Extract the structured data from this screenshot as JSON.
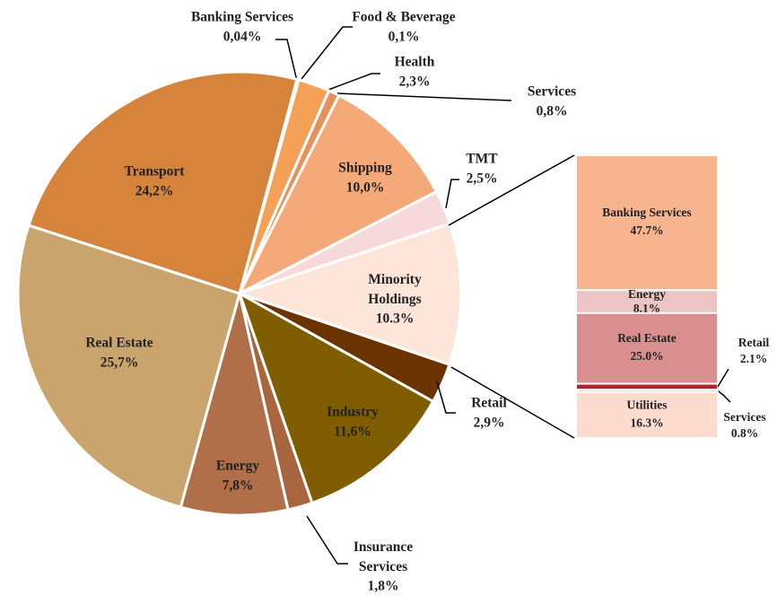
{
  "chart_data": [
    {
      "type": "pie",
      "categories": [
        "Banking Services",
        "Food & Beverage",
        "Health",
        "Services",
        "Shipping",
        "TMT",
        "Minority Holdings",
        "Retail",
        "Industry",
        "Insurance Services",
        "Energy",
        "Real Estate",
        "Transport"
      ],
      "values": [
        0.04,
        0.1,
        2.3,
        0.8,
        10.0,
        2.5,
        10.3,
        2.9,
        11.6,
        1.8,
        7.8,
        25.7,
        24.2
      ],
      "value_labels": [
        "0,04%",
        "0,1%",
        "2,3%",
        "0,8%",
        "10,0%",
        "2,5%",
        "10.3%",
        "2,9%",
        "11,6%",
        "1,8%",
        "7,8%",
        "25,7%",
        "24,2%"
      ],
      "colors": [
        "#fbe3c8",
        "#f6c089",
        "#f5a057",
        "#e8905a",
        "#f5a878",
        "#f7d9dc",
        "#fde5d9",
        "#6b3300",
        "#7f5d00",
        "#a8653e",
        "#b06f48",
        "#c9a46c",
        "#d6833c"
      ]
    },
    {
      "type": "bar",
      "categories": [
        "Banking Services",
        "Energy",
        "Real Estate",
        "Retail",
        "Services",
        "Utilities"
      ],
      "values": [
        47.7,
        8.1,
        25.0,
        2.1,
        0.8,
        16.3
      ],
      "value_labels": [
        "47.7%",
        "8.1%",
        "25.0%",
        "2.1%",
        "0.8%",
        "16.3%"
      ],
      "colors": [
        "#f7b48e",
        "#ecc4c4",
        "#d98f8f",
        "#b2222a",
        "#e8b0a8",
        "#fcdccf"
      ]
    }
  ]
}
